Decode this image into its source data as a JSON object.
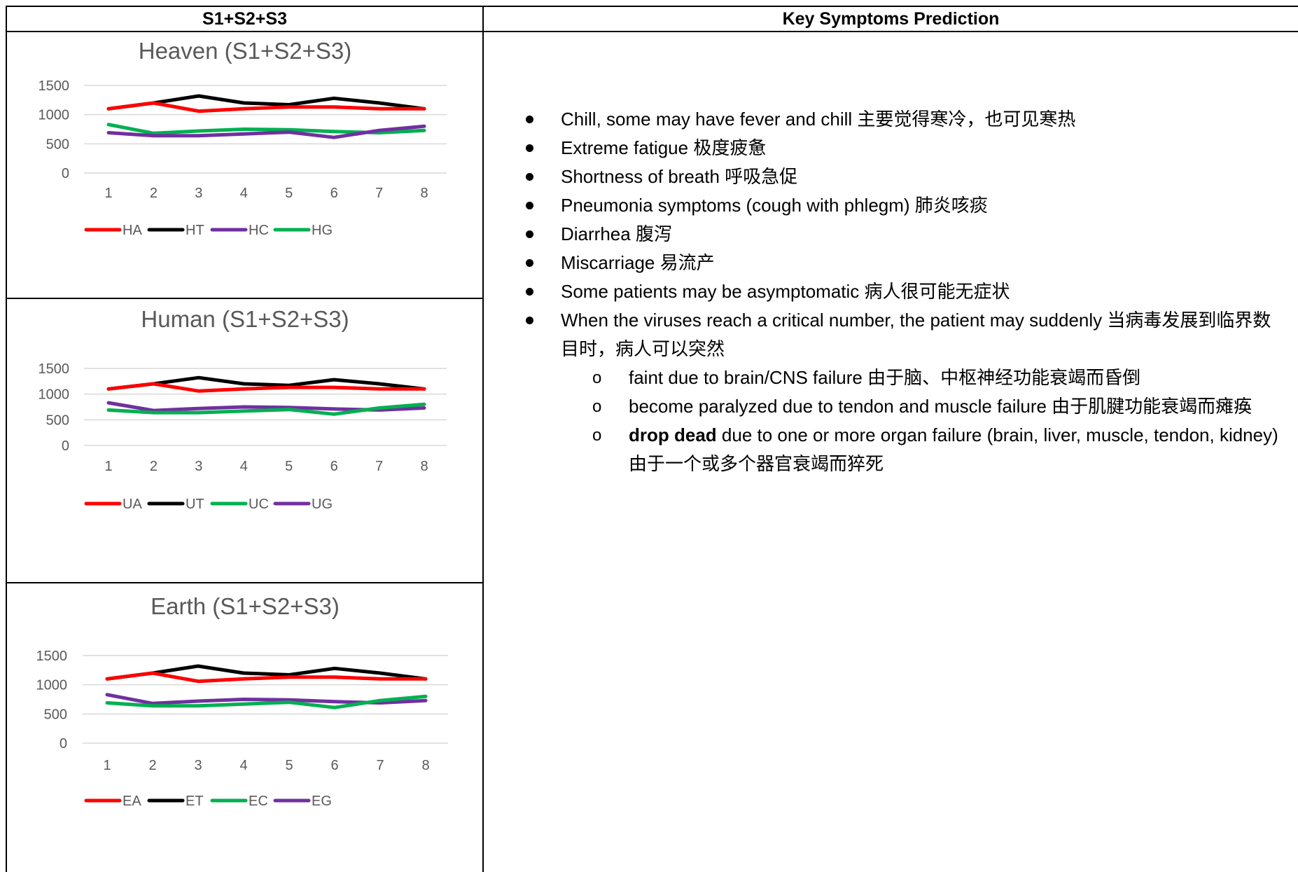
{
  "table": {
    "col_left_header": "S1+S2+S3",
    "col_right_header": "Key Symptoms Prediction"
  },
  "chart_data": [
    {
      "type": "line",
      "title": "Heaven (S1+S2+S3)",
      "x": [
        1,
        2,
        3,
        4,
        5,
        6,
        7,
        8
      ],
      "ylim": [
        0,
        1500
      ],
      "yticks": [
        0,
        500,
        1000,
        1500
      ],
      "grid": true,
      "legend_position": "bottom",
      "series": [
        {
          "name": "HA",
          "color": "#ff0000",
          "values": [
            1100,
            1200,
            1060,
            1100,
            1130,
            1130,
            1100,
            1100
          ]
        },
        {
          "name": "HT",
          "color": "#000000",
          "values": [
            1100,
            1200,
            1320,
            1200,
            1170,
            1280,
            1200,
            1100
          ]
        },
        {
          "name": "HC",
          "color": "#7030a0",
          "values": [
            690,
            640,
            640,
            670,
            700,
            610,
            730,
            800
          ]
        },
        {
          "name": "HG",
          "color": "#00b050",
          "values": [
            830,
            680,
            720,
            750,
            740,
            710,
            690,
            730
          ]
        }
      ]
    },
    {
      "type": "line",
      "title": "Human (S1+S2+S3)",
      "x": [
        1,
        2,
        3,
        4,
        5,
        6,
        7,
        8
      ],
      "ylim": [
        0,
        1500
      ],
      "yticks": [
        0,
        500,
        1000,
        1500
      ],
      "grid": true,
      "legend_position": "bottom",
      "series": [
        {
          "name": "UA",
          "color": "#ff0000",
          "values": [
            1100,
            1200,
            1060,
            1100,
            1130,
            1130,
            1100,
            1100
          ]
        },
        {
          "name": "UT",
          "color": "#000000",
          "values": [
            1100,
            1200,
            1320,
            1200,
            1170,
            1280,
            1200,
            1100
          ]
        },
        {
          "name": "UC",
          "color": "#00b050",
          "values": [
            690,
            640,
            640,
            670,
            700,
            610,
            730,
            800
          ]
        },
        {
          "name": "UG",
          "color": "#7030a0",
          "values": [
            830,
            680,
            720,
            750,
            740,
            710,
            690,
            730
          ]
        }
      ]
    },
    {
      "type": "line",
      "title": "Earth (S1+S2+S3)",
      "x": [
        1,
        2,
        3,
        4,
        5,
        6,
        7,
        8
      ],
      "ylim": [
        0,
        1500
      ],
      "yticks": [
        0,
        500,
        1000,
        1500
      ],
      "grid": true,
      "legend_position": "bottom",
      "series": [
        {
          "name": "EA",
          "color": "#ff0000",
          "values": [
            1100,
            1200,
            1060,
            1100,
            1130,
            1130,
            1100,
            1100
          ]
        },
        {
          "name": "ET",
          "color": "#000000",
          "values": [
            1100,
            1200,
            1320,
            1200,
            1170,
            1280,
            1200,
            1100
          ]
        },
        {
          "name": "EC",
          "color": "#00b050",
          "values": [
            690,
            640,
            640,
            670,
            700,
            610,
            730,
            800
          ]
        },
        {
          "name": "EG",
          "color": "#7030a0",
          "values": [
            830,
            680,
            720,
            750,
            740,
            710,
            690,
            730
          ]
        }
      ]
    }
  ],
  "symptoms": {
    "items": [
      "Chill, some may have fever and chill 主要觉得寒冷，也可见寒热",
      "Extreme fatigue 极度疲惫",
      "Shortness of breath 呼吸急促",
      "Pneumonia symptoms (cough with phlegm) 肺炎咳痰",
      "Diarrhea 腹泻",
      "Miscarriage 易流产",
      "Some patients may be asymptomatic 病人很可能无症状",
      "When the viruses reach a critical number, the patient may suddenly 当病毒发展到临界数目时，病人可以突然"
    ],
    "sub_items": [
      {
        "bold": "",
        "text": "faint due to brain/CNS failure 由于脑、中枢神经功能衰竭而昏倒"
      },
      {
        "bold": "",
        "text": "become paralyzed due to tendon and muscle failure 由于肌腱功能衰竭而瘫痪"
      },
      {
        "bold": "drop dead",
        "text": " due to one or more organ failure (brain, liver, muscle, tendon, kidney) 由于一个或多个器官衰竭而猝死"
      }
    ]
  }
}
